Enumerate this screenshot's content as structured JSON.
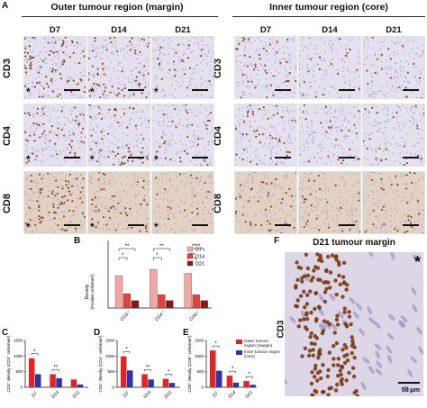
{
  "panel_a": {
    "letter": "A",
    "margin_title": "Outer tumour region (margin)",
    "core_title": "Inner tumour region (core)",
    "timepoints": [
      "D7",
      "D14",
      "D21"
    ],
    "markers": [
      "CD3",
      "CD4",
      "CD8"
    ],
    "star": "*"
  },
  "panel_f": {
    "letter": "F",
    "title": "D21 tumour margin",
    "row_label": "CD3",
    "star": "*",
    "scale_label": "50 μm"
  },
  "colors": {
    "d7": "#f3a6a6",
    "d14": "#e0423c",
    "d21": "#8f1616",
    "margin": "#e52421",
    "core": "#2b34a8",
    "stain_brown": "#7a3a12",
    "tissue_blue": "#c9c3de"
  },
  "chart_data": [
    {
      "panel": "B",
      "type": "bar",
      "ylabel_line1": "Density",
      "ylabel_line2": "(Positive cells/mm²)",
      "categories": [
        "CD3⁺",
        "CD4⁺",
        "CD8⁺"
      ],
      "series": [
        {
          "name": "D7",
          "values": [
            650,
            780,
            700
          ]
        },
        {
          "name": "D14",
          "values": [
            290,
            270,
            270
          ]
        },
        {
          "name": "D21",
          "values": [
            150,
            150,
            150
          ]
        }
      ],
      "significance": [
        "*",
        "**",
        "*",
        "**",
        "***",
        "****"
      ]
    },
    {
      "panel": "C",
      "type": "bar",
      "ylabel": "CD3⁺ density (CD3⁺ cells/mm²)",
      "yticks": [
        0,
        500,
        1000,
        1500
      ],
      "ylim": [
        0,
        1500
      ],
      "categories": [
        "D7",
        "D14",
        "D21"
      ],
      "series": [
        {
          "name": "Outer tumour region (margin)",
          "values": [
            930,
            420,
            250
          ]
        },
        {
          "name": "Inner tumour region (core)",
          "values": [
            420,
            290,
            90
          ]
        }
      ],
      "significance": [
        "*",
        "**"
      ]
    },
    {
      "panel": "D",
      "type": "bar",
      "ylabel": "CD4⁺ density (CD4⁺ cells/mm²)",
      "yticks": [
        0,
        500,
        1000,
        1500
      ],
      "ylim": [
        0,
        1500
      ],
      "categories": [
        "D7",
        "D14",
        "D21"
      ],
      "series": [
        {
          "name": "Outer tumour region (margin)",
          "values": [
            990,
            420,
            270
          ]
        },
        {
          "name": "Inner tumour region (core)",
          "values": [
            540,
            250,
            140
          ]
        }
      ],
      "significance": [
        "*",
        "**",
        "*"
      ]
    },
    {
      "panel": "E",
      "type": "bar",
      "ylabel": "CD8⁺ density (CD8⁺ cells/mm²)",
      "yticks": [
        0,
        500,
        1000,
        1500
      ],
      "ylim": [
        0,
        1500
      ],
      "categories": [
        "D7",
        "D14",
        "D21"
      ],
      "series": [
        {
          "name": "Outer tumour region (margin)",
          "values": [
            1180,
            370,
            200
          ]
        },
        {
          "name": "Inner tumour region (core)",
          "values": [
            530,
            150,
            80
          ]
        }
      ],
      "legend": [
        "Outer tumour region (margin)",
        "Inner tumour region (core)"
      ],
      "significance": [
        "*",
        "*",
        "*"
      ]
    }
  ]
}
